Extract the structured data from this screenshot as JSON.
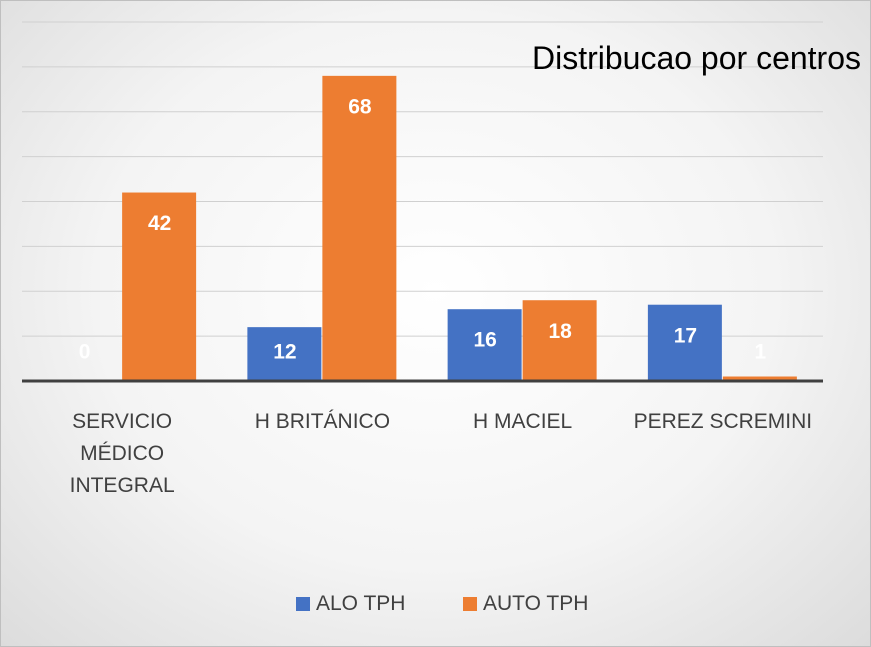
{
  "chart_data": {
    "type": "bar",
    "title": "Distribucao por centros",
    "categories": [
      "SERVICIO MÉDICO INTEGRAL",
      "H BRITÁNICO",
      "H MACIEL",
      "PEREZ SCREMINI"
    ],
    "series": [
      {
        "name": "ALO TPH",
        "color": "#4472c4",
        "values": [
          0,
          12,
          16,
          17
        ]
      },
      {
        "name": "AUTO TPH",
        "color": "#ed7d31",
        "values": [
          42,
          68,
          18,
          1
        ]
      }
    ],
    "ylim": [
      0,
      80
    ],
    "yticks": [
      0,
      10,
      20,
      30,
      40,
      50,
      60,
      70,
      80
    ],
    "grid": true
  }
}
